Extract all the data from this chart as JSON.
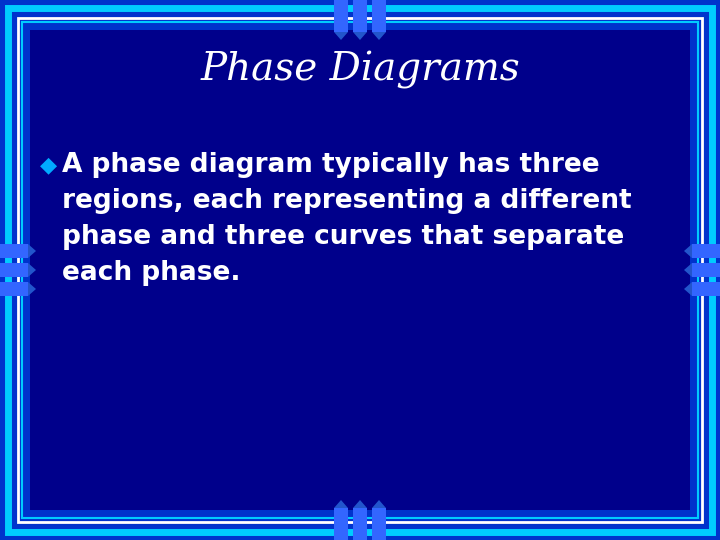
{
  "title": "Phase Diagrams",
  "title_color": "#FFFFFF",
  "title_fontsize": 28,
  "bullet_color": "#FFFFFF",
  "bullet_fontsize": 19,
  "bullet_marker": "◆",
  "bullet_marker_color": "#00AAFF",
  "bg_outer_color": "#0033CC",
  "bg_inner_color": "#00008B",
  "border_cyan": "#00CCFF",
  "border_white": "#FFFFFF",
  "slide_bg": "#0033CC",
  "inner_rect_color": "#00008B",
  "tab_color": "#3366FF",
  "tab_line_color": "#00AAFF",
  "bullet_lines": [
    "A phase diagram typically has three",
    "regions, each representing a different",
    "phase and three curves that separate",
    "each phase."
  ]
}
